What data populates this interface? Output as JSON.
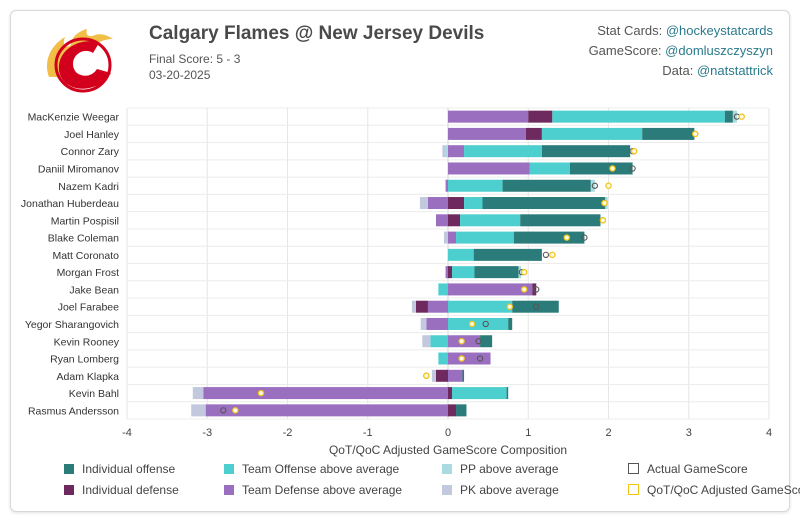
{
  "header": {
    "title": "Calgary Flames @ New Jersey Devils",
    "final_score": "Final Score: 5 - 3",
    "date": "03-20-2025",
    "credits": [
      {
        "label": "Stat Cards: ",
        "handle": "@hockeystatcards"
      },
      {
        "label": "GameScore: ",
        "handle": "@domluszczyszyn"
      },
      {
        "label": "Data: ",
        "handle": "@natstattrick"
      }
    ]
  },
  "colors": {
    "individual_offense": "#2a7b79",
    "individual_defense": "#6e2a5e",
    "team_offense": "#4ecfcf",
    "team_defense": "#9b6fbf",
    "pp": "#a9dbe0",
    "pk": "#c2c8de",
    "actual_marker": "#555555",
    "adjusted_marker": "#f0c419",
    "logo_red": "#d2001c",
    "logo_gold": "#f1be48"
  },
  "legend": [
    {
      "key": "individual_offense",
      "label": "Individual offense",
      "shape": "box"
    },
    {
      "key": "team_offense",
      "label": "Team Offense above average",
      "shape": "box"
    },
    {
      "key": "pp",
      "label": "PP above average",
      "shape": "box"
    },
    {
      "key": "actual_marker",
      "label": "Actual GameScore",
      "shape": "ring"
    },
    {
      "key": "individual_defense",
      "label": "Individual defense",
      "shape": "box"
    },
    {
      "key": "team_defense",
      "label": "Team Defense above average",
      "shape": "box"
    },
    {
      "key": "pk",
      "label": "PK above average",
      "shape": "box"
    },
    {
      "key": "adjusted_marker",
      "label": "QoT/QoC Adjusted GameScore",
      "shape": "ring"
    }
  ],
  "chart_data": {
    "type": "bar",
    "orientation": "horizontal",
    "stacked": true,
    "xlabel": "QoT/QoC Adjusted GameScore Composition",
    "xlim": [
      -4,
      4
    ],
    "xticks": [
      -4,
      -3,
      -2,
      -1,
      0,
      1,
      2,
      3,
      4
    ],
    "grid": true,
    "legend_position": "bottom",
    "series_order": [
      "team_defense",
      "individual_defense",
      "team_offense",
      "individual_offense",
      "pp",
      "pk"
    ],
    "players": [
      {
        "name": "MacKenzie Weegar",
        "team_defense": 1.0,
        "individual_defense": 0.3,
        "team_offense": 2.15,
        "individual_offense": 0.1,
        "pp": 0.05,
        "pk": 0,
        "actual": 3.6,
        "adjusted": 3.66
      },
      {
        "name": "Joel Hanley",
        "team_defense": 0.97,
        "individual_defense": 0.2,
        "team_offense": 1.25,
        "individual_offense": 0.65,
        "pp": 0,
        "pk": 0,
        "actual": 3.08,
        "adjusted": 3.08
      },
      {
        "name": "Connor Zary",
        "team_defense": 0.2,
        "individual_defense": 0,
        "team_offense": 0.97,
        "individual_offense": 1.1,
        "pp": -0.03,
        "pk": -0.04,
        "actual": 2.3,
        "adjusted": 2.32
      },
      {
        "name": "Daniil Miromanov",
        "team_defense": 1.02,
        "individual_defense": 0,
        "team_offense": 0.5,
        "individual_offense": 0.78,
        "pp": 0,
        "pk": 0,
        "actual": 2.3,
        "adjusted": 2.05
      },
      {
        "name": "Nazem Kadri",
        "team_defense": -0.03,
        "individual_defense": 0,
        "team_offense": 0.68,
        "individual_offense": 1.1,
        "pp": 0.05,
        "pk": 0,
        "actual": 1.83,
        "adjusted": 2.0
      },
      {
        "name": "Jonathan Huberdeau",
        "team_defense": -0.25,
        "individual_defense": 0.2,
        "team_offense": 0.23,
        "individual_offense": 1.53,
        "pp": 0.03,
        "pk": -0.1,
        "actual": 1.95,
        "adjusted": 1.95
      },
      {
        "name": "Martin Pospisil",
        "team_defense": -0.15,
        "individual_defense": 0.15,
        "team_offense": 0.75,
        "individual_offense": 1.0,
        "pp": 0,
        "pk": 0,
        "actual": 1.93,
        "adjusted": 1.93
      },
      {
        "name": "Blake Coleman",
        "team_defense": 0.1,
        "individual_defense": 0,
        "team_offense": 0.72,
        "individual_offense": 0.88,
        "pp": 0,
        "pk": -0.05,
        "actual": 1.7,
        "adjusted": 1.48
      },
      {
        "name": "Matt Coronato",
        "team_defense": 0,
        "individual_defense": 0,
        "team_offense": 0.32,
        "individual_offense": 0.85,
        "pp": 0,
        "pk": 0,
        "actual": 1.22,
        "adjusted": 1.3
      },
      {
        "name": "Morgan Frost",
        "team_defense": -0.03,
        "individual_defense": 0.05,
        "team_offense": 0.28,
        "individual_offense": 0.55,
        "pp": 0.03,
        "pk": 0,
        "actual": 0.92,
        "adjusted": 0.95
      },
      {
        "name": "Jake Bean",
        "team_defense": 1.05,
        "individual_defense": 0.05,
        "team_offense": -0.12,
        "individual_offense": 0,
        "pp": 0,
        "pk": 0,
        "actual": 1.1,
        "adjusted": 0.95
      },
      {
        "name": "Joel Farabee",
        "team_defense": -0.25,
        "individual_defense": -0.15,
        "team_offense": 0.8,
        "individual_offense": 0.58,
        "pp": 0,
        "pk": -0.05,
        "actual": 1.1,
        "adjusted": 0.77
      },
      {
        "name": "Yegor Sharangovich",
        "team_defense": -0.27,
        "individual_defense": 0,
        "team_offense": 0.75,
        "individual_offense": 0.05,
        "pp": 0,
        "pk": -0.07,
        "actual": 0.47,
        "adjusted": 0.3
      },
      {
        "name": "Kevin Rooney",
        "team_defense": 0.4,
        "individual_defense": 0,
        "team_offense": -0.22,
        "individual_offense": 0.15,
        "pp": 0,
        "pk": -0.1,
        "actual": 0.38,
        "adjusted": 0.17
      },
      {
        "name": "Ryan Lomberg",
        "team_defense": 0.53,
        "individual_defense": 0,
        "team_offense": -0.12,
        "individual_offense": 0,
        "pp": 0,
        "pk": 0,
        "actual": 0.4,
        "adjusted": 0.17
      },
      {
        "name": "Adam Klapka",
        "team_defense": 0.18,
        "individual_defense": -0.15,
        "team_offense": 0,
        "individual_offense": 0.02,
        "pp": 0,
        "pk": -0.05,
        "actual": -0.27,
        "adjusted": -0.27
      },
      {
        "name": "Kevin Bahl",
        "team_defense": -3.05,
        "individual_defense": 0.05,
        "team_offense": 0.68,
        "individual_offense": 0.02,
        "pp": 0,
        "pk": -0.13,
        "actual": -2.33,
        "adjusted": -2.33
      },
      {
        "name": "Rasmus Andersson",
        "team_defense": -3.02,
        "individual_defense": 0.1,
        "team_offense": 0,
        "individual_offense": 0.13,
        "pp": 0,
        "pk": -0.18,
        "actual": -2.8,
        "adjusted": -2.65
      }
    ]
  }
}
